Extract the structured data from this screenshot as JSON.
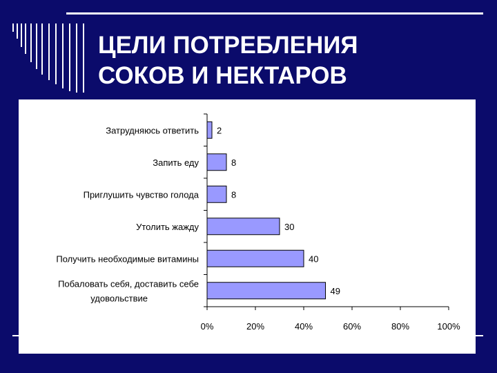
{
  "slide": {
    "title_lines": [
      "ЦЕЛИ ПОТРЕБЛЕНИЯ",
      "СОКОВ И НЕКТАРОВ"
    ]
  },
  "colors": {
    "background": "#0b0b6b",
    "bar_fill": "#9999ff",
    "bar_stroke": "#000000",
    "text": "#000000",
    "title": "#ffffff"
  },
  "chart_data": {
    "type": "bar",
    "orientation": "horizontal",
    "title": "",
    "xlabel": "",
    "ylabel": "",
    "xlim": [
      0,
      100
    ],
    "x_ticks": [
      "0%",
      "20%",
      "40%",
      "60%",
      "80%",
      "100%"
    ],
    "grid": false,
    "legend": "none",
    "categories": [
      [
        "Затрудняюсь ответить"
      ],
      [
        "Запить еду"
      ],
      [
        "Приглушить чувство голода"
      ],
      [
        "Утолить жажду"
      ],
      [
        "Получить необходимые витамины"
      ],
      [
        "Побаловать себя, доставить себе",
        "удовольствие"
      ]
    ],
    "values": [
      2,
      8,
      8,
      30,
      40,
      49
    ]
  }
}
